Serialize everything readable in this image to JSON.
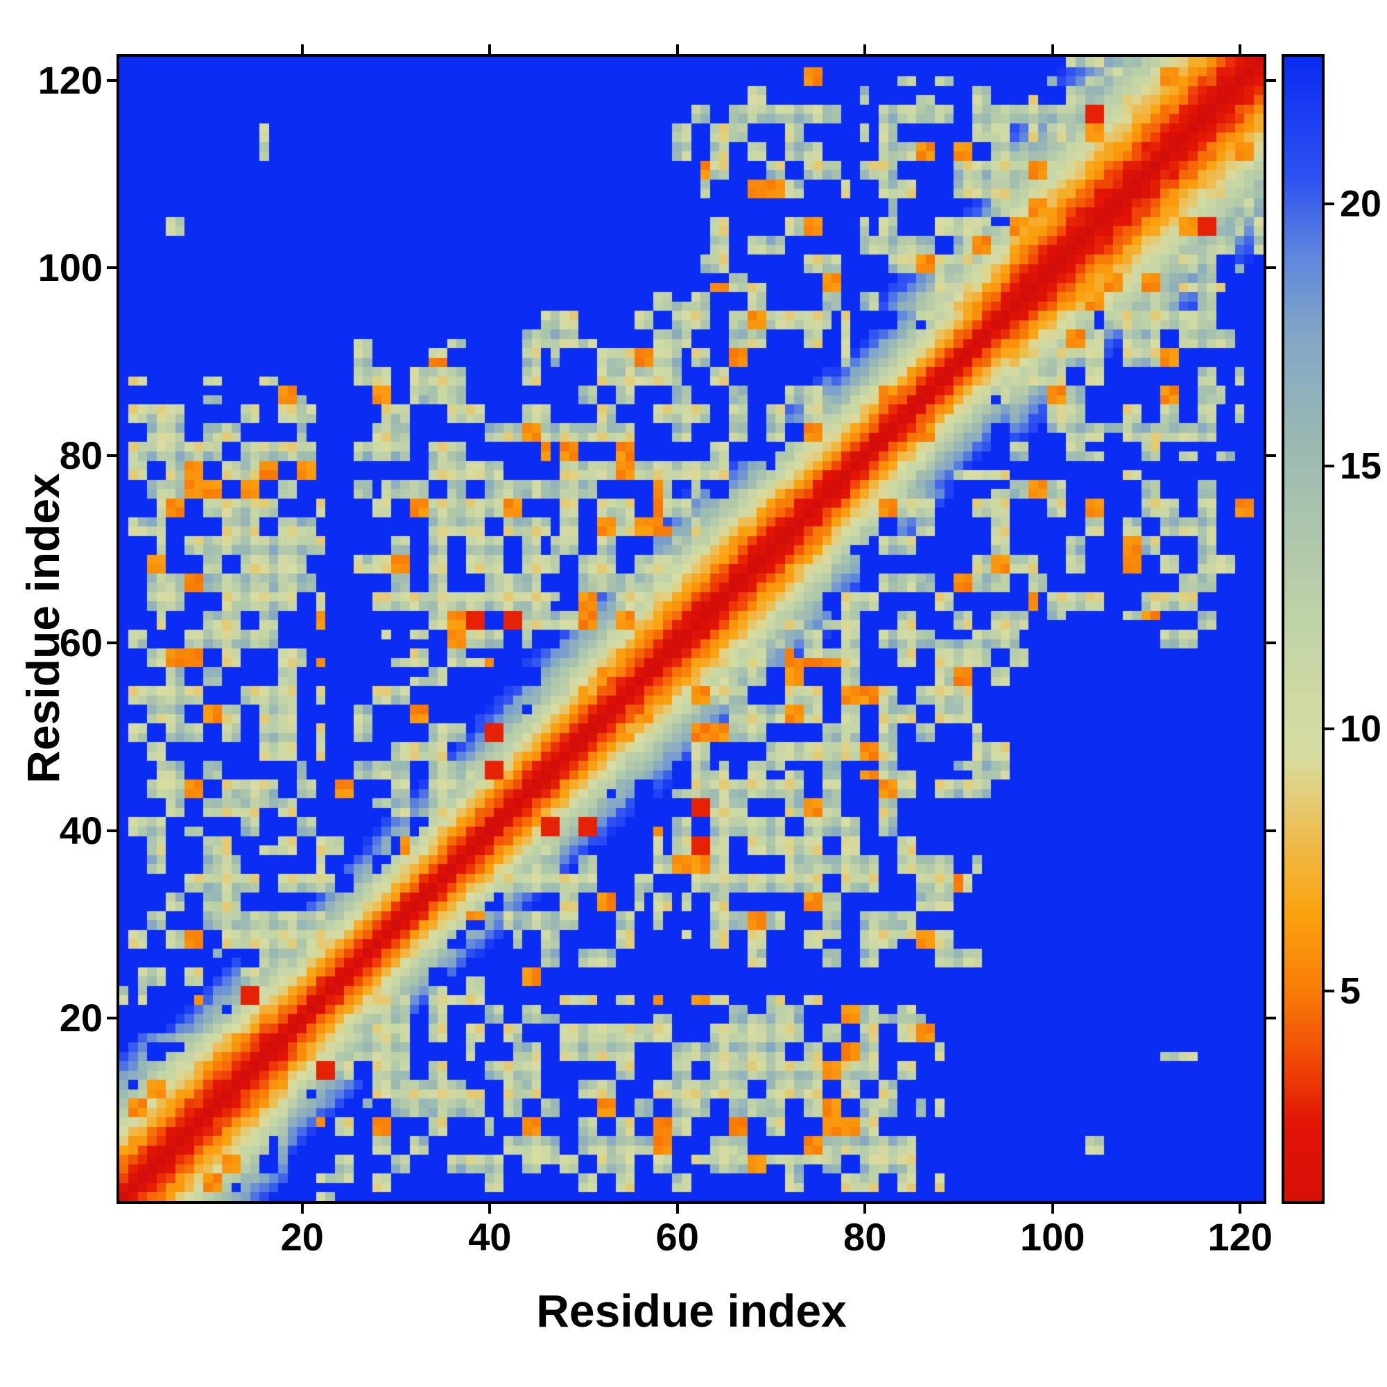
{
  "figure": {
    "background_color": "#ffffff",
    "frame_color": "#000000"
  },
  "chart_data": {
    "type": "heatmap",
    "title": "",
    "xlabel": "Residue index",
    "ylabel": "Residue index",
    "x_ticks": [
      20,
      40,
      60,
      80,
      100,
      120
    ],
    "y_ticks": [
      20,
      40,
      60,
      80,
      100,
      120
    ],
    "axis_range": [
      1,
      122
    ],
    "n_residues": 122,
    "grid": false,
    "legend": "none",
    "description": "Symmetric residue-residue distance map of a 122-residue protein. Red diagonal (zero distance) flanked by orange and pale-green bands; off-diagonal pale green/grey contact clusters with orange speckles on a deep blue (large distance) background.",
    "colorbar": {
      "position": "right",
      "vmin": 1,
      "vmax": 22.8,
      "ticks": [
        5,
        10,
        15,
        20
      ]
    },
    "colormap": {
      "stops": [
        [
          0.0,
          "#d20d0a"
        ],
        [
          2.5,
          "#e21506"
        ],
        [
          3.5,
          "#f04206"
        ],
        [
          5.0,
          "#f87d08"
        ],
        [
          6.5,
          "#fba30f"
        ],
        [
          8.0,
          "#edbe54"
        ],
        [
          9.5,
          "#d8dda2"
        ],
        [
          11.5,
          "#c6d6a6"
        ],
        [
          13.5,
          "#b0c8ab"
        ],
        [
          15.5,
          "#9ab9b4"
        ],
        [
          17.5,
          "#83a7c6"
        ],
        [
          19.0,
          "#5f87dd"
        ],
        [
          20.5,
          "#2f52f2"
        ],
        [
          22.8,
          "#0b2cf2"
        ]
      ]
    },
    "matrix_model": {
      "n": 122,
      "background_value": 23,
      "band": {
        "slope": 1.75,
        "cutoff_value": 21.8
      },
      "band_width_segments": [
        {
          "range": [
            1,
            18
          ],
          "scale": 0.78
        },
        {
          "range": [
            19,
            38
          ],
          "scale": 1.05
        },
        {
          "range": [
            39,
            55
          ],
          "scale": 0.95
        },
        {
          "range": [
            56,
            76
          ],
          "scale": 0.82
        },
        {
          "range": [
            77,
            95
          ],
          "scale": 1.0
        },
        {
          "range": [
            96,
            122
          ],
          "scale": 0.62
        }
      ],
      "clusters": [
        {
          "i": [
            1,
            12
          ],
          "j": [
            20,
            42
          ],
          "density": 0.42
        },
        {
          "i": [
            2,
            22
          ],
          "j": [
            40,
            58
          ],
          "density": 0.5
        },
        {
          "i": [
            2,
            22
          ],
          "j": [
            56,
            88
          ],
          "density": 0.66
        },
        {
          "i": [
            4,
            16
          ],
          "j": [
            103,
            116
          ],
          "density": 0.15
        },
        {
          "i": [
            8,
            24
          ],
          "j": [
            24,
            40
          ],
          "density": 0.5
        },
        {
          "i": [
            24,
            40
          ],
          "j": [
            40,
            58
          ],
          "density": 0.32
        },
        {
          "i": [
            26,
            46
          ],
          "j": [
            58,
            92
          ],
          "density": 0.52
        },
        {
          "i": [
            44,
            62
          ],
          "j": [
            62,
            95
          ],
          "density": 0.58
        },
        {
          "i": [
            58,
            78
          ],
          "j": [
            78,
            98
          ],
          "density": 0.52
        },
        {
          "i": [
            60,
            80
          ],
          "j": [
            95,
            122
          ],
          "density": 0.4
        },
        {
          "i": [
            80,
            100
          ],
          "j": [
            95,
            120
          ],
          "density": 0.55
        },
        {
          "i": [
            100,
            122
          ],
          "j": [
            104,
            122
          ],
          "density": 0.42
        }
      ],
      "hot_spots": [
        {
          "i": [
            2,
            12
          ],
          "j": [
            56,
            70
          ]
        },
        {
          "i": [
            10,
            22
          ],
          "j": [
            70,
            86
          ]
        },
        {
          "i": [
            30,
            44
          ],
          "j": [
            74,
            90
          ]
        },
        {
          "i": [
            44,
            58
          ],
          "j": [
            68,
            84
          ]
        },
        {
          "i": [
            50,
            64
          ],
          "j": [
            56,
            72
          ]
        },
        {
          "i": [
            84,
            98
          ],
          "j": [
            100,
            114
          ]
        }
      ],
      "plaid": {
        "base": 12.3,
        "amplitude": 2.1,
        "frequency": 1.9,
        "phase": 0.7,
        "jitter": 1.4,
        "min": 8.6,
        "max": 17.4
      },
      "speckle": {
        "orange_value": 5.6,
        "orange_prob": 0.05,
        "hot_orange_prob": 0.16,
        "red_value": 2.8,
        "red_prob": 0.01
      },
      "band_noise": {
        "hole_prob": 0.18,
        "jitter": 1.6
      },
      "seed": 7
    }
  }
}
